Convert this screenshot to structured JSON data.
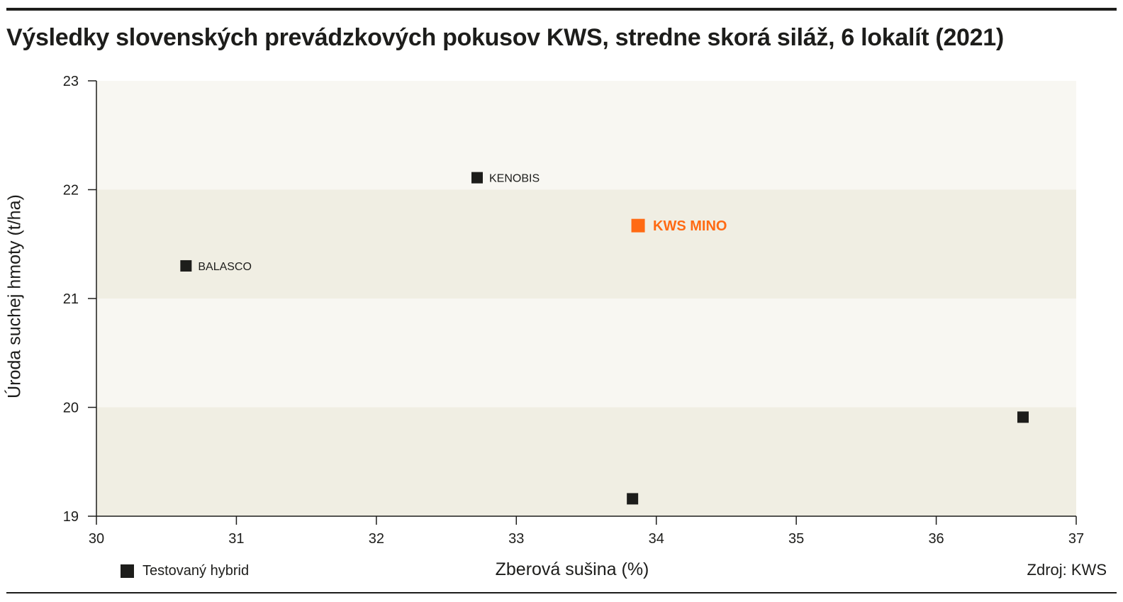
{
  "header": {
    "title": "Výsledky slovenských prevádzkových pokusov KWS, stredne skorá siláž, 6 lokalít (2021)"
  },
  "legend": {
    "label": "Testovaný hybrid"
  },
  "source": "Zdroj: KWS",
  "colors": {
    "highlight": "#ff6a13",
    "point": "#1d1d1b",
    "band_light": "#f8f7f2",
    "band_dark": "#f0eee3"
  },
  "chart_data": {
    "type": "scatter",
    "title": "Výsledky slovenských prevádzkových pokusov KWS, stredne skorá siláž, 6 lokalít (2021)",
    "xlabel": "Zberová sušina (%)",
    "ylabel": "Úroda suchej hmoty (t/ha)",
    "xlim": [
      30,
      37
    ],
    "ylim": [
      19,
      23
    ],
    "xticks": [
      "30",
      "31",
      "32",
      "33",
      "34",
      "35",
      "36",
      "37"
    ],
    "yticks": [
      "19",
      "20",
      "21",
      "22",
      "23"
    ],
    "grid": false,
    "legend_position": "bottom-left",
    "points": [
      {
        "x": 32.72,
        "y": 22.11,
        "label": "KENOBIS",
        "highlight": false
      },
      {
        "x": 33.87,
        "y": 21.67,
        "label": "KWS MINO",
        "highlight": true
      },
      {
        "x": 30.64,
        "y": 21.3,
        "label": "BALASCO",
        "highlight": false
      },
      {
        "x": 36.62,
        "y": 19.91,
        "label": "",
        "highlight": false
      },
      {
        "x": 33.83,
        "y": 19.16,
        "label": "",
        "highlight": false
      }
    ]
  }
}
